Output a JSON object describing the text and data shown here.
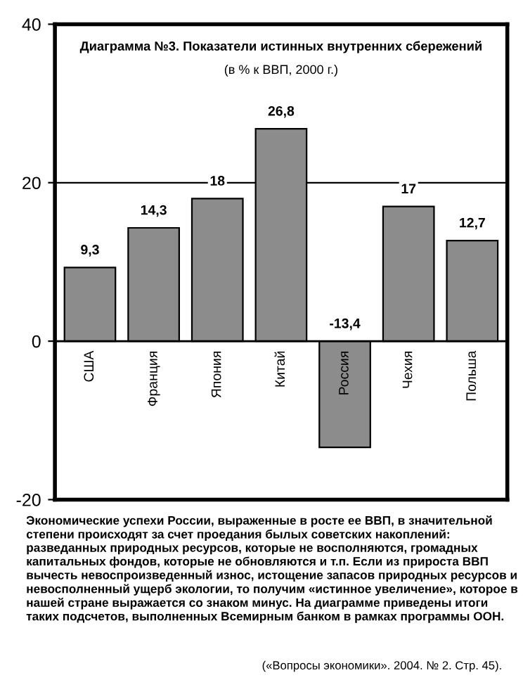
{
  "chart_data": {
    "type": "bar",
    "title": "Диаграмма №3. Показатели истинных внутренних сбережений",
    "subtitle": "(в % к ВВП, 2000 г.)",
    "categories": [
      "США",
      "Франция",
      "Япония",
      "Китай",
      "Россия",
      "Чехия",
      "Польша"
    ],
    "values": [
      9.3,
      14.3,
      18,
      26.8,
      -13.4,
      17,
      12.7
    ],
    "value_labels": [
      "9,3",
      "14,3",
      "18",
      "26,8",
      "-13,4",
      "17",
      "12,7"
    ],
    "color": "#8c8c8c",
    "ylim": [
      -20,
      40
    ],
    "yticks": [
      -20,
      0,
      20,
      40
    ],
    "grid": "y",
    "annotations": [
      "Экономические успехи России, выраженные в росте ее ВВП, в значительной степени происходят за счет проедания былых советских накоплений: разведанных природных ресурсов, которые не восполняются, громадных капитальных фондов, которые не обновляются и т.п. Если из прироста ВВП вычесть невоспроизведенный износ, истощение запасов природных ресурсов и невосполненный ущерб экологии, то получим «истинное увеличение», которое в нашей стране выражается со знаком минус. На диаграмме приведены итоги таких подсчетов, выполненных Всемирным банком в рамках программы ООН.",
      "(«Вопросы экономики». 2004. № 2. Стр. 45)."
    ]
  }
}
